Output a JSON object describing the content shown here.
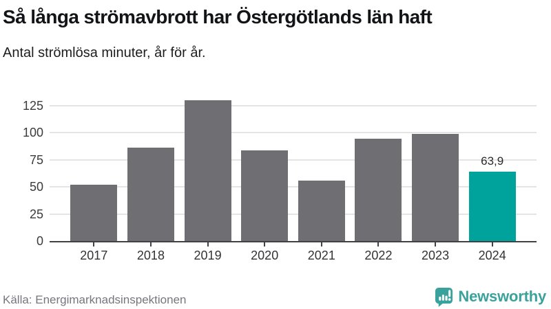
{
  "header": {
    "title": "Så långa strömavbrott har Östergötlands län haft",
    "subtitle": "Antal strömlösa minuter, år för år."
  },
  "chart_data": {
    "type": "bar",
    "title": "Så långa strömavbrott har Östergötlands län haft",
    "subtitle": "Antal strömlösa minuter, år för år.",
    "categories": [
      "2017",
      "2018",
      "2019",
      "2020",
      "2021",
      "2022",
      "2023",
      "2024"
    ],
    "values": [
      52,
      86.5,
      130,
      84,
      56,
      94.5,
      99,
      63.9
    ],
    "yticks": [
      0,
      25,
      50,
      75,
      100,
      125
    ],
    "ylim": [
      0,
      139
    ],
    "grid": true,
    "legend": false,
    "xlabel": "",
    "ylabel": "Antal strömlösa minuter",
    "highlight_index": 7,
    "data_label": {
      "index": 7,
      "text": "63,9"
    },
    "bar_color": "#6e6e73",
    "highlight_color": "#00a39b",
    "gridline_color": "#e4e4e4",
    "axis_color": "#3f3f45"
  },
  "footer": {
    "source": "Källa: Energimarknadsinspektionen",
    "brand": "Newsworthy",
    "brand_color": "#3aa29c"
  }
}
